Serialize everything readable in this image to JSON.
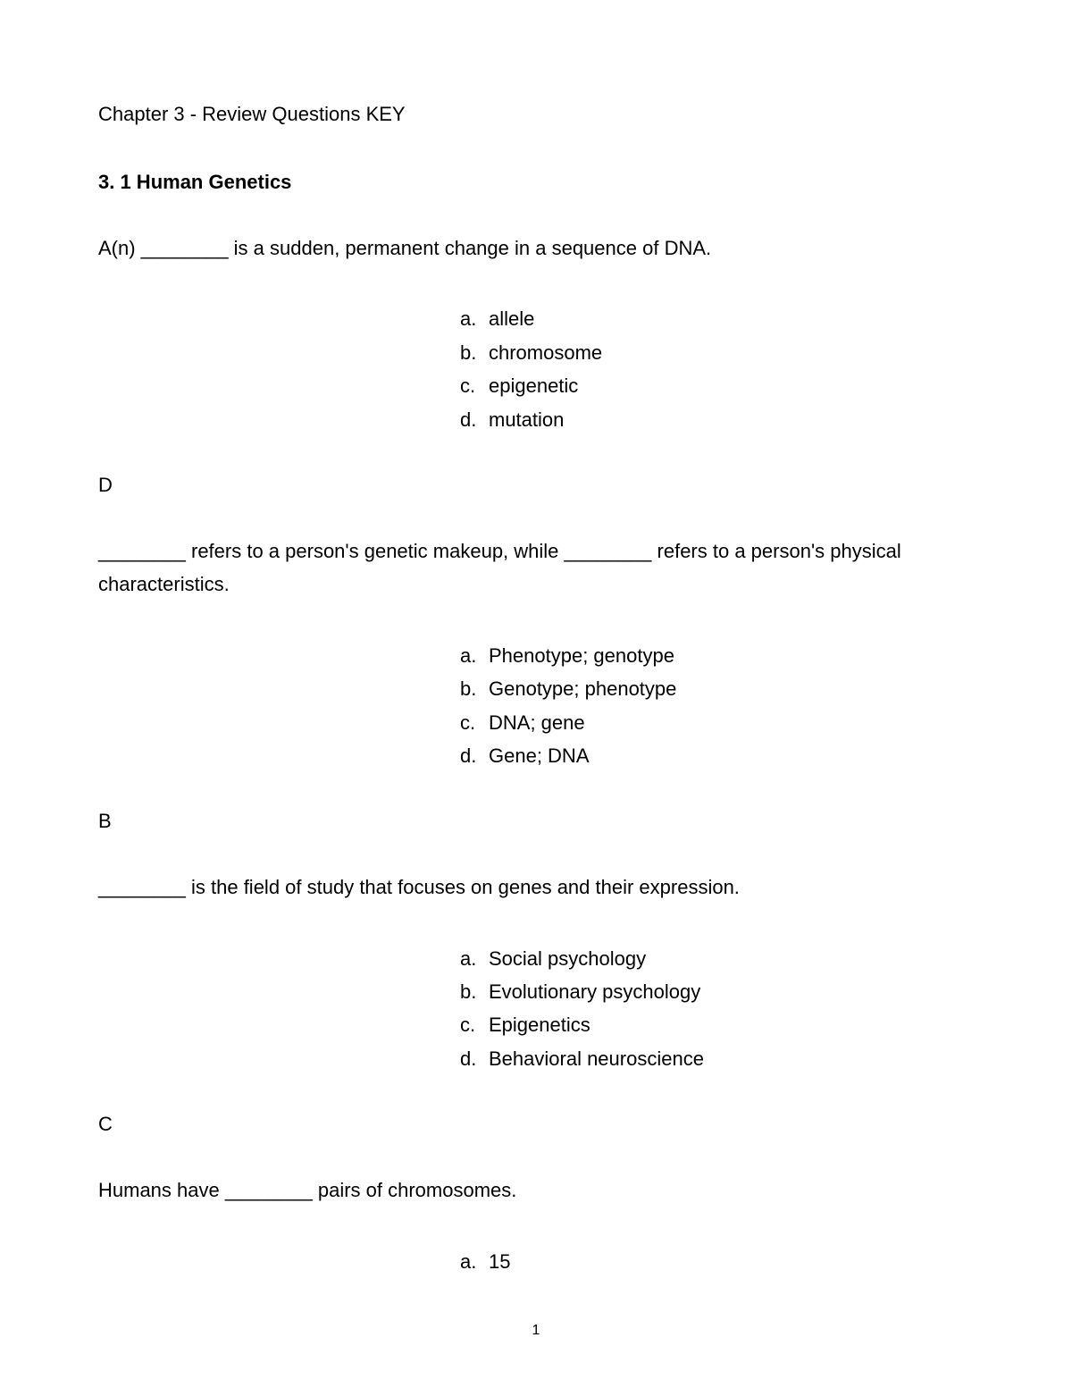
{
  "document": {
    "chapter_title": "Chapter 3 - Review Questions KEY",
    "section_heading": "3. 1 Human Genetics",
    "page_number": "1",
    "text_color": "#000000",
    "background_color": "#ffffff",
    "font_family": "Arial",
    "body_fontsize": 22
  },
  "questions": [
    {
      "text": "A(n) ________ is a sudden, permanent change in a sequence of DNA.",
      "options": [
        {
          "letter": "a.",
          "text": "allele"
        },
        {
          "letter": "b.",
          "text": "chromosome"
        },
        {
          "letter": "c.",
          "text": "epigenetic"
        },
        {
          "letter": "d.",
          "text": "mutation"
        }
      ],
      "answer": "D"
    },
    {
      "text": "________ refers to a person's genetic makeup, while ________ refers to a person's physical characteristics.",
      "options": [
        {
          "letter": "a.",
          "text": "Phenotype; genotype"
        },
        {
          "letter": "b.",
          "text": "Genotype; phenotype"
        },
        {
          "letter": "c.",
          "text": "DNA; gene"
        },
        {
          "letter": "d.",
          "text": "Gene; DNA"
        }
      ],
      "answer": "B"
    },
    {
      "text": "________ is the field of study that focuses on genes and their expression.",
      "options": [
        {
          "letter": "a.",
          "text": "Social psychology"
        },
        {
          "letter": "b.",
          "text": "Evolutionary psychology"
        },
        {
          "letter": "c.",
          "text": "Epigenetics"
        },
        {
          "letter": "d.",
          "text": "Behavioral neuroscience"
        }
      ],
      "answer": "C"
    },
    {
      "text": "Humans have ________ pairs of chromosomes.",
      "options": [
        {
          "letter": "a.",
          "text": "15"
        }
      ],
      "answer": ""
    }
  ]
}
